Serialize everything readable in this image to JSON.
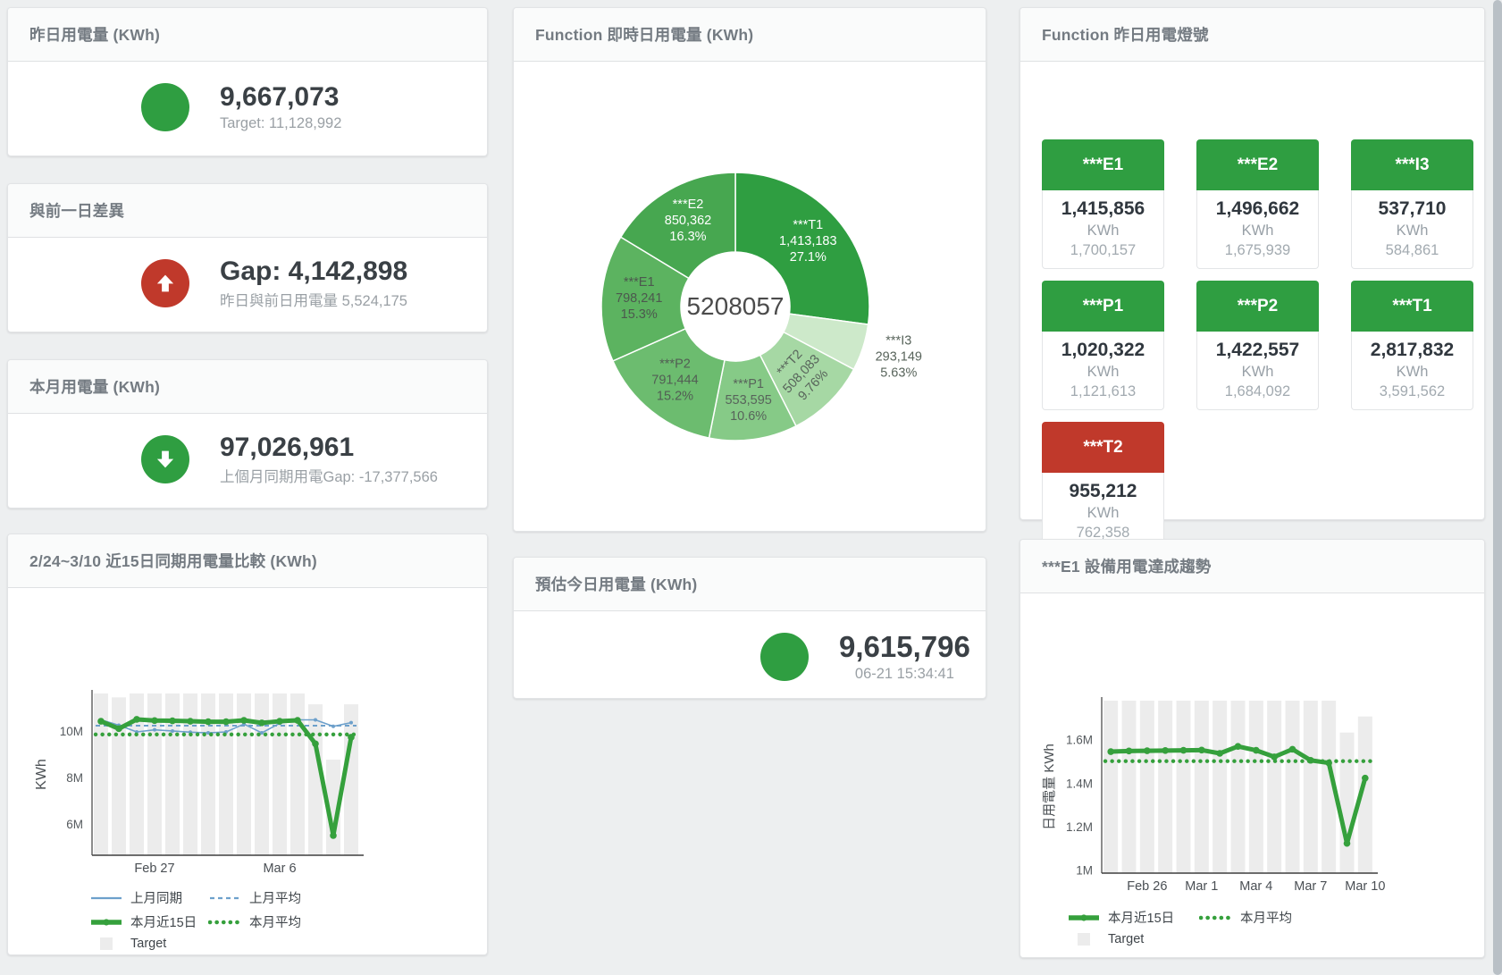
{
  "colors": {
    "green": "#2f9e41",
    "red": "#c0392b",
    "bar_fill": "#ececec",
    "blue_line": "#6da0cb",
    "green_line": "#35a03c"
  },
  "stat_cards": {
    "yesterday": {
      "title": "昨日用電量 (KWh)",
      "value": "9,667,073",
      "subtext": "Target: 11,128,992",
      "status": "green",
      "icon": "circle"
    },
    "day_gap": {
      "title": "與前一日差異",
      "value": "Gap: 4,142,898",
      "subtext": "昨日與前日用電量 5,524,175",
      "status": "red",
      "icon": "arrow-up"
    },
    "month": {
      "title": "本月用電量 (KWh)",
      "value": "97,026,961",
      "subtext": "上個月同期用電Gap: -17,377,566",
      "status": "green",
      "icon": "arrow-down"
    },
    "estimate": {
      "title": "預估今日用電量 (KWh)",
      "value": "9,615,796",
      "subtext": "06-21 15:34:41",
      "status": "green",
      "icon": "circle"
    }
  },
  "donut_card": {
    "title": "Function 即時日用電量 (KWh)"
  },
  "lights_card": {
    "title": "Function 昨日用電燈號",
    "unit_label": "KWh",
    "tiles": [
      {
        "label": "***E1",
        "value": "1,415,856",
        "target": "1,700,157",
        "status": "green"
      },
      {
        "label": "***E2",
        "value": "1,496,662",
        "target": "1,675,939",
        "status": "green"
      },
      {
        "label": "***I3",
        "value": "537,710",
        "target": "584,861",
        "status": "green"
      },
      {
        "label": "***P1",
        "value": "1,020,322",
        "target": "1,121,613",
        "status": "green"
      },
      {
        "label": "***P2",
        "value": "1,422,557",
        "target": "1,684,092",
        "status": "green"
      },
      {
        "label": "***T1",
        "value": "2,817,832",
        "target": "3,591,562",
        "status": "green"
      },
      {
        "label": "***T2",
        "value": "955,212",
        "target": "762,358",
        "status": "red"
      }
    ]
  },
  "compare_card": {
    "title": "2/24~3/10 近15日同期用電量比較 (KWh)"
  },
  "trend_card": {
    "title": "***E1 設備用電達成趨勢"
  },
  "chart_data": [
    {
      "id": "realtime_donut",
      "type": "pie",
      "title": "Function 即時日用電量 (KWh)",
      "center_total": "5208057",
      "segments": [
        {
          "name": "***T1",
          "value": 1413183,
          "label_value": "1,413,183",
          "pct": "27.1%",
          "color": "#2f9e41",
          "text": "#ffffff"
        },
        {
          "name": "***I3",
          "value": 293149,
          "label_value": "293,149",
          "pct": "5.63%",
          "color": "#cde9ca",
          "text": "#58645b",
          "placement": "outside"
        },
        {
          "name": "***T2",
          "value": 508083,
          "label_value": "508,083",
          "pct": "9.76%",
          "color": "#a6d8a4",
          "text": "#58645b",
          "rotate": -47
        },
        {
          "name": "***P1",
          "value": 553595,
          "label_value": "553,595",
          "pct": "10.6%",
          "color": "#86ca87",
          "text": "#58645b"
        },
        {
          "name": "***P2",
          "value": 791444,
          "label_value": "791,444",
          "pct": "15.2%",
          "color": "#6cbc6f",
          "text": "#525e54"
        },
        {
          "name": "***E1",
          "value": 798241,
          "label_value": "798,241",
          "pct": "15.3%",
          "color": "#5cb360",
          "text": "#4c584e"
        },
        {
          "name": "***E2",
          "value": 850362,
          "label_value": "850,362",
          "pct": "16.3%",
          "color": "#47a750",
          "text": "#ffffff"
        }
      ]
    },
    {
      "id": "compare_15d",
      "type": "line+bar",
      "title": "2/24~3/10 近15日同期用電量比較 (KWh)",
      "ylabel": "KWh",
      "ylim": [
        4650000,
        11615000
      ],
      "yticks": [
        {
          "v": 6000000,
          "label": "6M"
        },
        {
          "v": 8000000,
          "label": "8M"
        },
        {
          "v": 10000000,
          "label": "10M"
        }
      ],
      "xticks": [
        {
          "i": 3,
          "label": "Feb 27"
        },
        {
          "i": 10,
          "label": "Mar 6"
        }
      ],
      "target_label": "Target",
      "target_bars": [
        11615000,
        11450000,
        11615000,
        11615000,
        11615000,
        11615000,
        11615000,
        11615000,
        11615000,
        11615000,
        11615000,
        11615000,
        11150000,
        8770000,
        11150000
      ],
      "series": [
        {
          "name": "上月平均",
          "style": "dash",
          "color": "#6da0cb",
          "values": 10230000
        },
        {
          "name": "上月同期",
          "style": "thin",
          "color": "#6da0cb",
          "values": [
            10480000,
            10250000,
            9960000,
            10050000,
            10000000,
            9950000,
            9920000,
            9960000,
            10300000,
            9920000,
            10330000,
            10480000,
            10480000,
            10200000,
            10360000
          ]
        },
        {
          "name": "本月平均",
          "style": "dots",
          "color": "#35a03c",
          "values": 9850000
        },
        {
          "name": "本月近15日",
          "style": "thick",
          "color": "#35a03c",
          "values": [
            10420000,
            10100000,
            10500000,
            10450000,
            10440000,
            10420000,
            10400000,
            10400000,
            10460000,
            10350000,
            10420000,
            10460000,
            9450000,
            5500000,
            9730000
          ]
        }
      ],
      "legend": [
        "上月同期",
        "上月平均",
        "本月近15日",
        "本月平均",
        "Target"
      ]
    },
    {
      "id": "e1_trend",
      "type": "line+bar",
      "title": "***E1 設備用電達成趨勢",
      "ylabel": "日用電量 KWh",
      "ylim": [
        985000,
        1780000
      ],
      "yticks": [
        {
          "v": 1000000,
          "label": "1M"
        },
        {
          "v": 1200000,
          "label": "1.2M"
        },
        {
          "v": 1400000,
          "label": "1.4M"
        },
        {
          "v": 1600000,
          "label": "1.6M"
        }
      ],
      "xticks": [
        {
          "i": 2,
          "label": "Feb 26"
        },
        {
          "i": 5,
          "label": "Mar 1"
        },
        {
          "i": 8,
          "label": "Mar 4"
        },
        {
          "i": 11,
          "label": "Mar 7"
        },
        {
          "i": 14,
          "label": "Mar 10"
        }
      ],
      "target_label": "Target",
      "target_bars": [
        1780000,
        1780000,
        1780000,
        1780000,
        1780000,
        1780000,
        1780000,
        1780000,
        1780000,
        1780000,
        1780000,
        1780000,
        1780000,
        1633000,
        1707000
      ],
      "series": [
        {
          "name": "本月平均",
          "style": "dots",
          "color": "#35a03c",
          "values": 1501000
        },
        {
          "name": "本月近15日",
          "style": "thick",
          "color": "#35a03c",
          "values": [
            1545000,
            1548000,
            1549000,
            1550000,
            1551000,
            1552000,
            1537000,
            1569000,
            1551000,
            1521000,
            1556000,
            1505000,
            1493000,
            1122000,
            1423000
          ]
        }
      ],
      "legend": [
        "本月近15日",
        "本月平均",
        "Target"
      ]
    }
  ]
}
